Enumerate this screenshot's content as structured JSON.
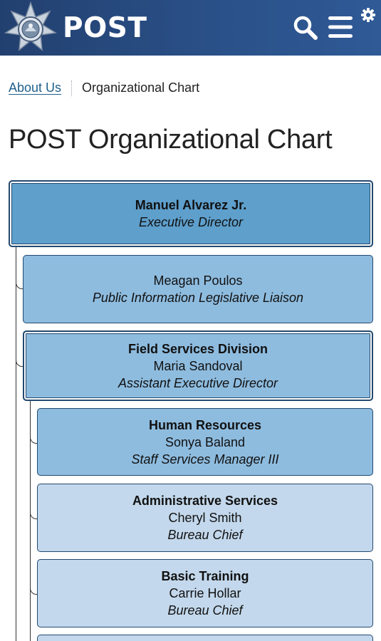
{
  "header": {
    "logo_text": "POST",
    "icons": {
      "logo": "star-badge-icon",
      "search": "search-icon",
      "menu": "hamburger-menu-icon",
      "settings": "gear-icon"
    },
    "colors": {
      "bar": "#2a5088",
      "foreground": "#ffffff"
    }
  },
  "breadcrumb": {
    "parent": "About Us",
    "current": "Organizational Chart"
  },
  "page_title": "POST Organizational Chart",
  "org": {
    "director": {
      "title": "Manuel Alvarez Jr.",
      "role": "Executive Director"
    },
    "liaison": {
      "name": "Meagan Poulos",
      "role": "Public Information Legislative Liaison"
    },
    "field_services": {
      "title": "Field Services Division",
      "name": "Maria Sandoval",
      "role": "Assistant Executive Director"
    },
    "human_resources": {
      "title": "Human Resources",
      "name": "Sonya Baland",
      "role": "Staff Services Manager III"
    },
    "admin_services": {
      "title": "Administrative Services",
      "name": "Cheryl Smith",
      "role": "Bureau Chief"
    },
    "basic_training": {
      "title": "Basic Training",
      "name": "Carrie Hollar",
      "role": "Bureau Chief"
    }
  },
  "colors": {
    "level1": "#5e9fcc",
    "level2": "#8ebcdf",
    "level3": "#c3d8ec",
    "border": "#23496f",
    "link": "#1f5f8b"
  }
}
